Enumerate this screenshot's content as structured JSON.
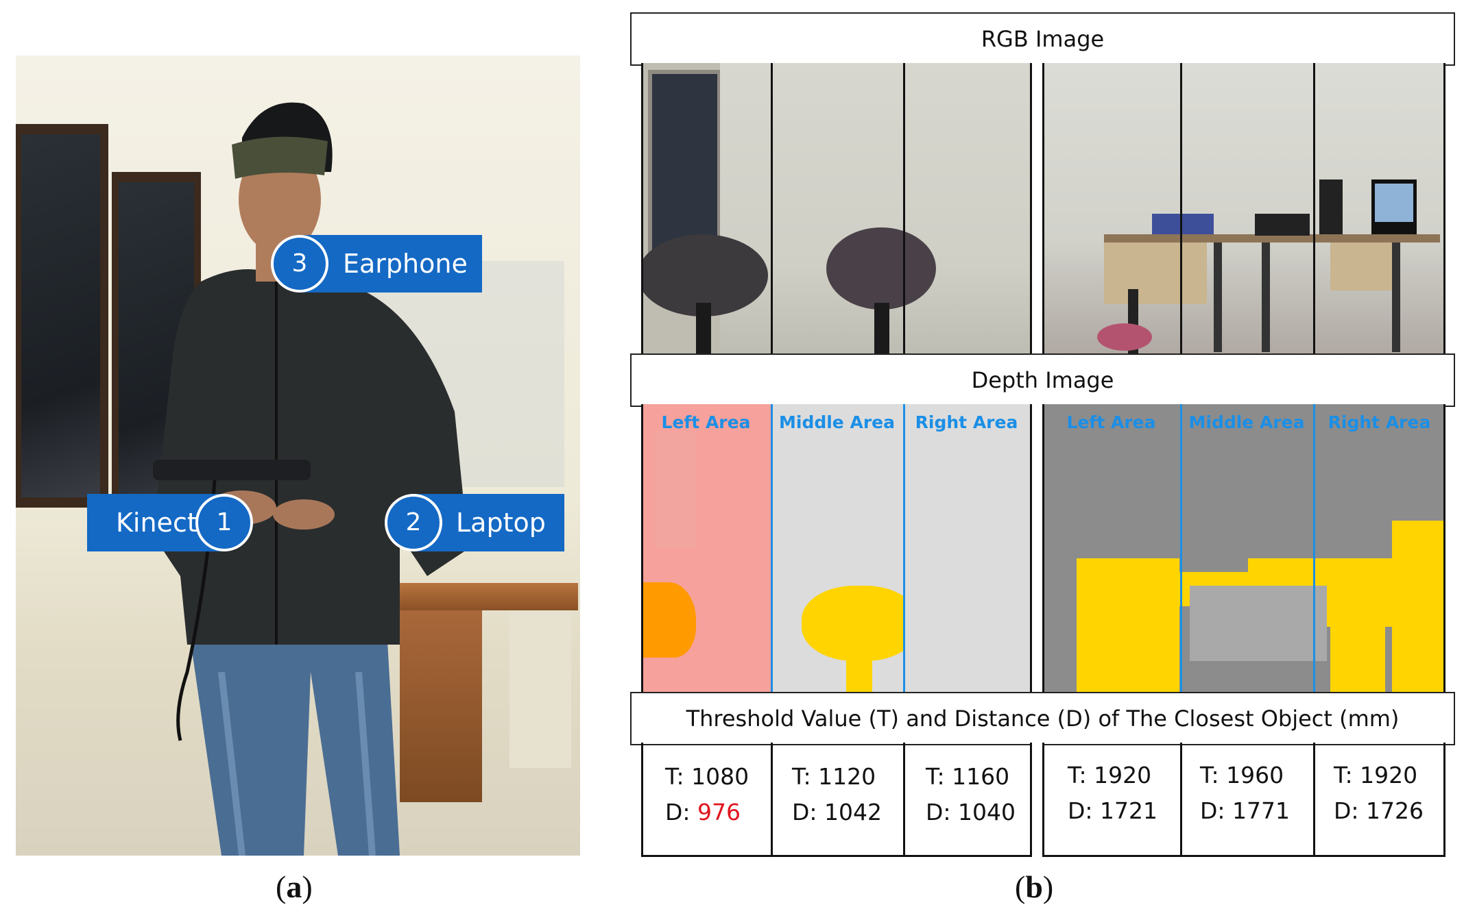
{
  "panel_a": {
    "callouts": [
      {
        "number": "3",
        "label": "Earphone"
      },
      {
        "number": "1",
        "label": "Kinect"
      },
      {
        "number": "2",
        "label": "Laptop"
      }
    ],
    "caption_letter": "a"
  },
  "panel_b": {
    "rgb_header": "RGB Image",
    "depth_header": "Depth Image",
    "threshold_header": "Threshold Value (T) and Distance (D) of The Closest Object (mm)",
    "area_labels": [
      "Left Area",
      "Middle Area",
      "Right Area",
      "Left Area",
      "Middle Area",
      "Right Area"
    ],
    "measurements": [
      {
        "t": "T: 1080",
        "d_prefix": "D: ",
        "d_value": "976",
        "highlight": true
      },
      {
        "t": "T: 1120",
        "d_prefix": "D: ",
        "d_value": "1042",
        "highlight": false
      },
      {
        "t": "T: 1160",
        "d_prefix": "D: ",
        "d_value": "1040",
        "highlight": false
      },
      {
        "t": "T: 1920",
        "d_prefix": "D: ",
        "d_value": "1721",
        "highlight": false
      },
      {
        "t": "T: 1960",
        "d_prefix": "D: ",
        "d_value": "1771",
        "highlight": false
      },
      {
        "t": "T: 1920",
        "d_prefix": "D: ",
        "d_value": "1726",
        "highlight": false
      }
    ],
    "caption_letter": "b"
  },
  "colors": {
    "callout_blue": "#1469c4",
    "area_label_blue": "#1b8fe6",
    "obstacle_yellow": "#ffd400",
    "close_obstacle_orange": "#ff9a00",
    "close_area_pink": "#f6a19b",
    "highlight_red": "#e0141e"
  }
}
